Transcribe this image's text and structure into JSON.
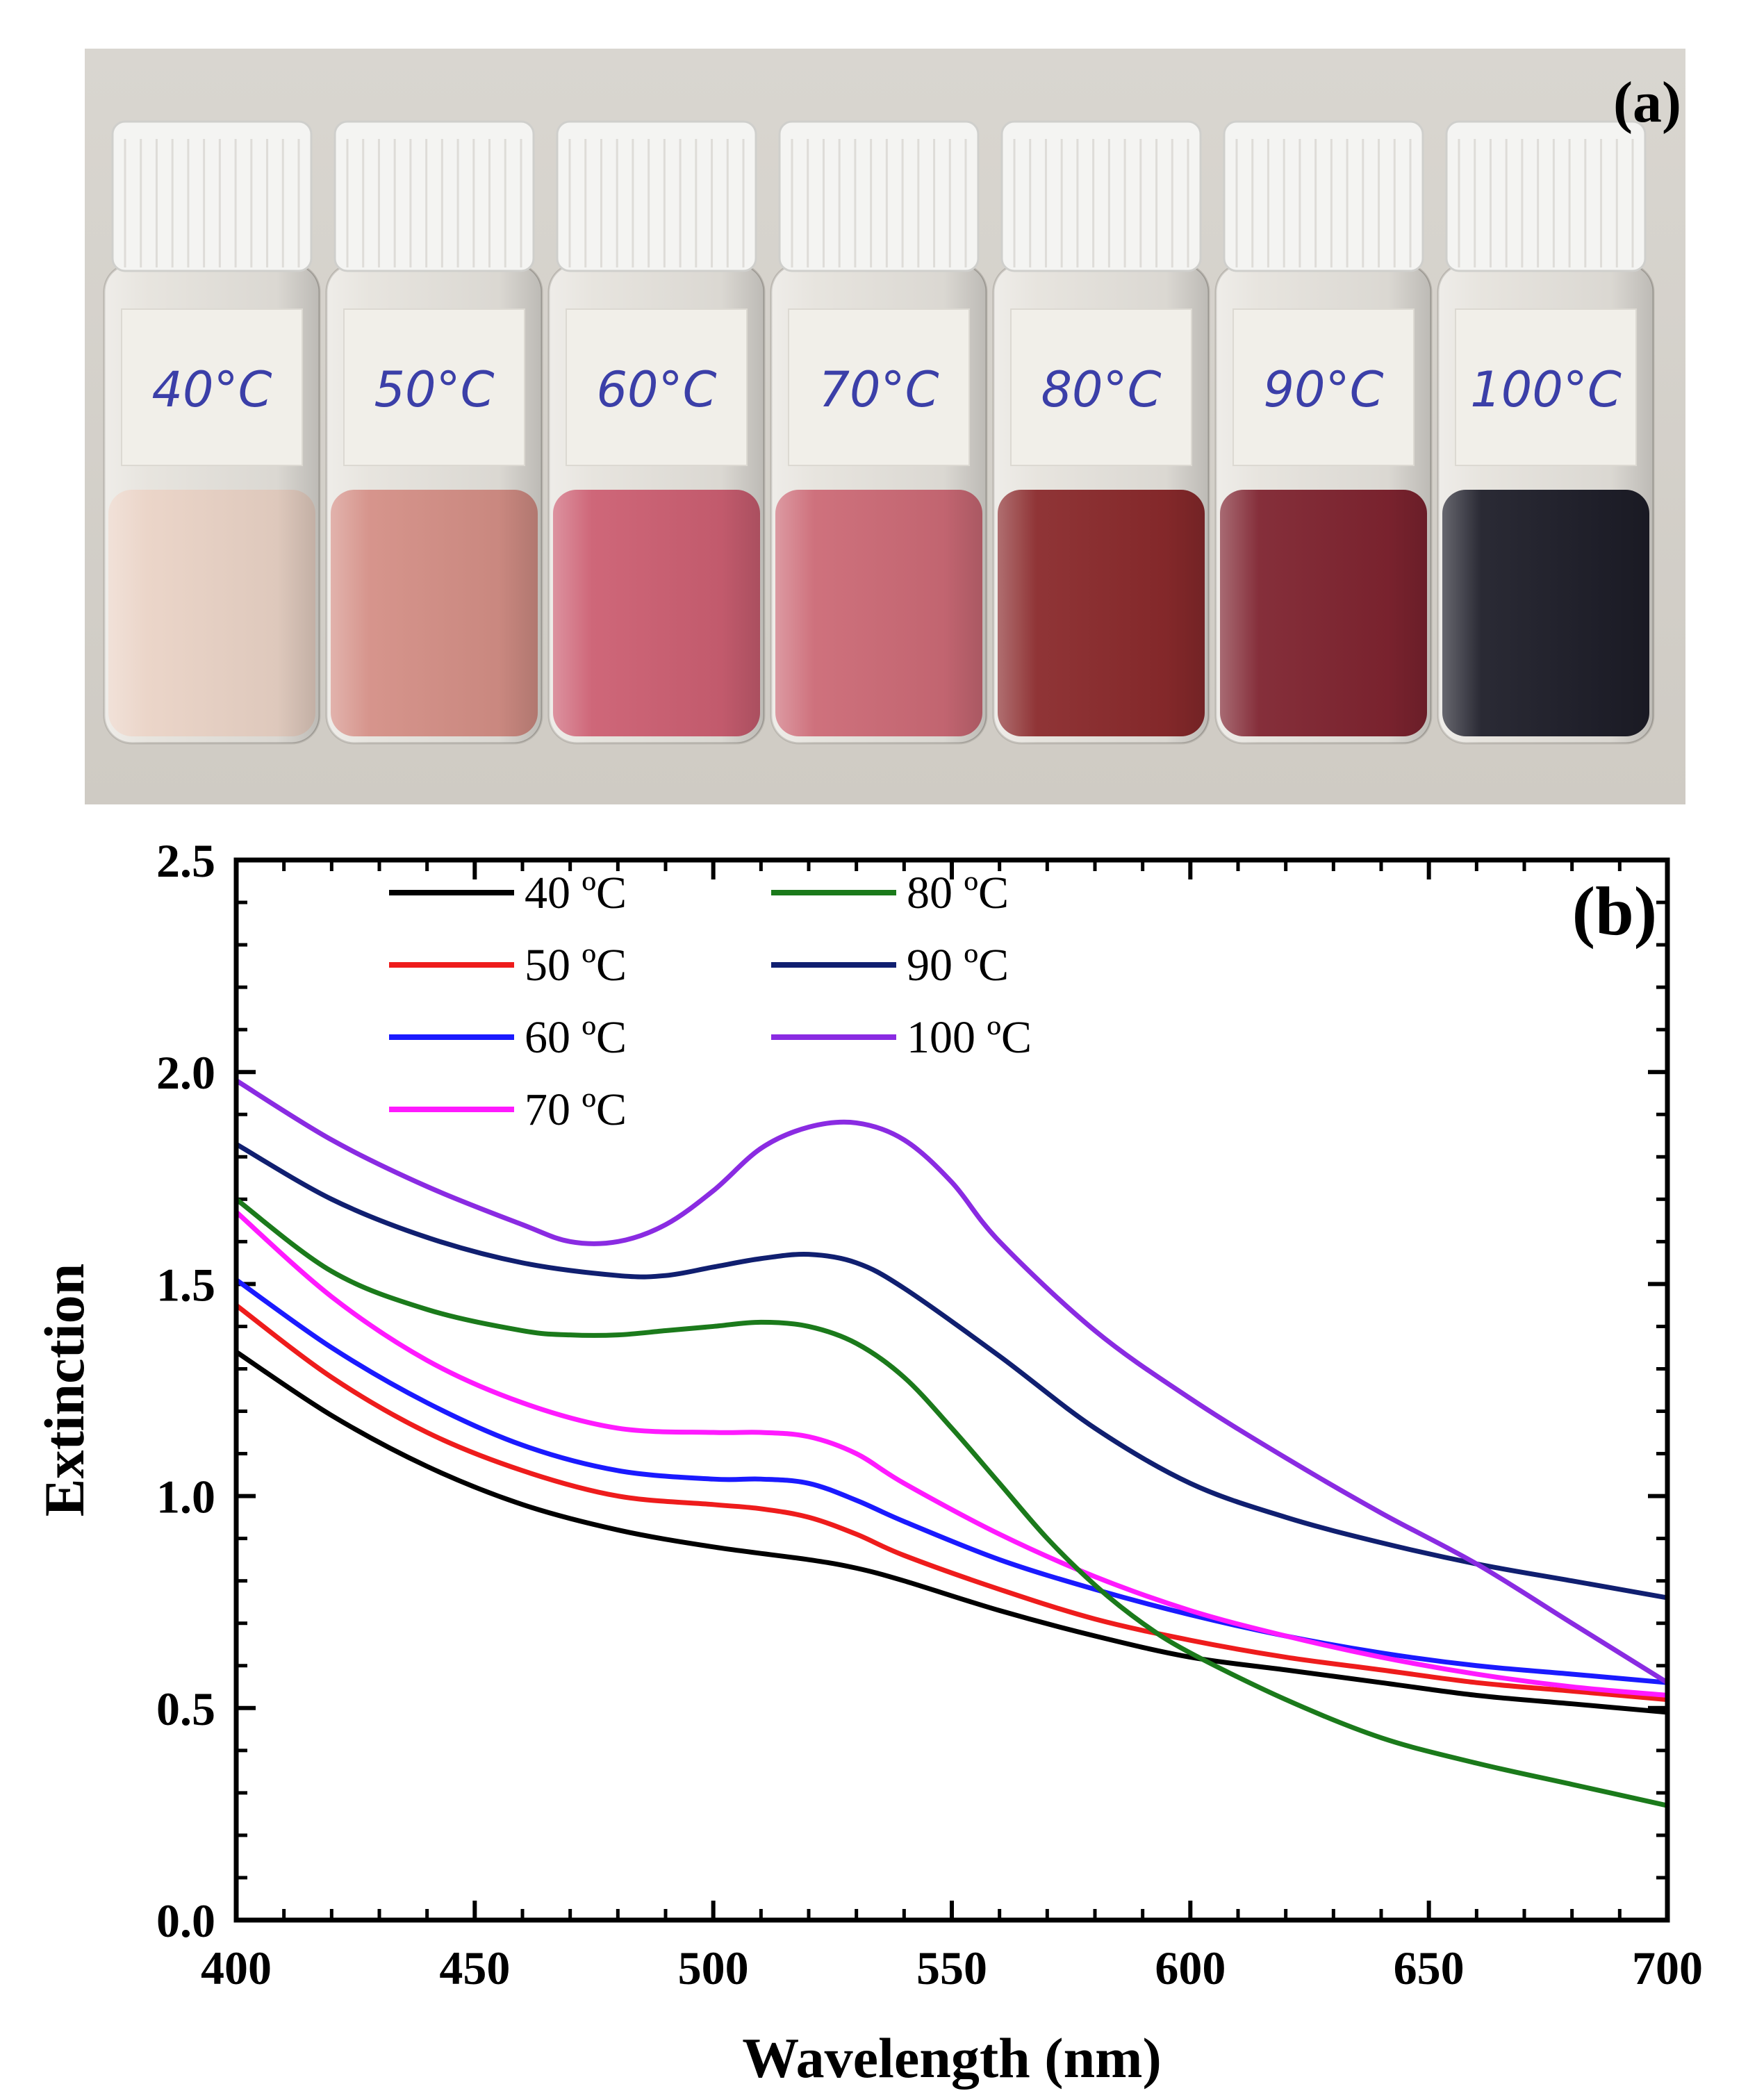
{
  "photo": {
    "panel_label": "(a)",
    "background_colors": [
      "#d9d6d0",
      "#cfcbc4"
    ],
    "cap_color": "#f4f4f2",
    "label_ink": "#3b3fa8",
    "vials": [
      {
        "label": "40°C",
        "liquid": "#ead3c6"
      },
      {
        "label": "50°C",
        "liquid": "#d48f86"
      },
      {
        "label": "60°C",
        "liquid": "#cc5f72"
      },
      {
        "label": "70°C",
        "liquid": "#cc6a76"
      },
      {
        "label": "80°C",
        "liquid": "#8a2a2c"
      },
      {
        "label": "90°C",
        "liquid": "#7f2430"
      },
      {
        "label": "100°C",
        "liquid": "#1f1f2a"
      }
    ]
  },
  "chart_data": {
    "type": "line",
    "panel_label": "(b)",
    "xlabel": "Wavelength (nm)",
    "ylabel": "Extinction",
    "xlim": [
      400,
      700
    ],
    "ylim": [
      0.0,
      2.5
    ],
    "x_ticks": [
      400,
      450,
      500,
      550,
      600,
      650,
      700
    ],
    "x_tick_labels": [
      "400",
      "450",
      "500",
      "550",
      "600",
      "650",
      "700"
    ],
    "y_ticks": [
      0.0,
      0.5,
      1.0,
      1.5,
      2.0,
      2.5
    ],
    "y_tick_labels": [
      "0.0",
      "0.5",
      "1.0",
      "1.5",
      "2.0",
      "2.5"
    ],
    "legend_placement": "top-left",
    "series": [
      {
        "name": "40 ºC",
        "color": "#000000",
        "x": [
          400,
          420,
          440,
          460,
          480,
          500,
          520,
          530,
          540,
          560,
          580,
          600,
          620,
          640,
          660,
          680,
          700
        ],
        "y": [
          1.34,
          1.19,
          1.07,
          0.98,
          0.92,
          0.88,
          0.85,
          0.83,
          0.8,
          0.73,
          0.67,
          0.62,
          0.59,
          0.56,
          0.53,
          0.51,
          0.49
        ]
      },
      {
        "name": "50 ºC",
        "color": "#ee1c1c",
        "x": [
          400,
          420,
          440,
          460,
          480,
          500,
          510,
          520,
          530,
          540,
          560,
          580,
          600,
          620,
          640,
          660,
          680,
          700
        ],
        "y": [
          1.45,
          1.28,
          1.15,
          1.06,
          1.0,
          0.98,
          0.97,
          0.95,
          0.91,
          0.86,
          0.78,
          0.71,
          0.66,
          0.62,
          0.59,
          0.56,
          0.54,
          0.52
        ]
      },
      {
        "name": "60 ºC",
        "color": "#1a1aff",
        "x": [
          400,
          420,
          440,
          460,
          480,
          500,
          510,
          520,
          530,
          540,
          560,
          580,
          600,
          620,
          640,
          660,
          680,
          700
        ],
        "y": [
          1.51,
          1.35,
          1.22,
          1.12,
          1.06,
          1.04,
          1.04,
          1.03,
          0.99,
          0.94,
          0.85,
          0.78,
          0.72,
          0.67,
          0.63,
          0.6,
          0.58,
          0.56
        ]
      },
      {
        "name": "70 ºC",
        "color": "#ff1aff",
        "x": [
          400,
          420,
          440,
          460,
          480,
          500,
          510,
          520,
          530,
          540,
          560,
          580,
          600,
          620,
          640,
          660,
          680,
          700
        ],
        "y": [
          1.67,
          1.47,
          1.32,
          1.22,
          1.16,
          1.15,
          1.15,
          1.14,
          1.1,
          1.03,
          0.91,
          0.81,
          0.73,
          0.67,
          0.62,
          0.58,
          0.55,
          0.53
        ]
      },
      {
        "name": "80 ºC",
        "color": "#1b7a1b",
        "x": [
          400,
          420,
          440,
          460,
          470,
          480,
          490,
          500,
          510,
          520,
          530,
          540,
          550,
          560,
          570,
          580,
          590,
          600,
          620,
          640,
          660,
          680,
          700
        ],
        "y": [
          1.7,
          1.53,
          1.44,
          1.39,
          1.38,
          1.38,
          1.39,
          1.4,
          1.41,
          1.4,
          1.36,
          1.28,
          1.16,
          1.03,
          0.9,
          0.79,
          0.7,
          0.63,
          0.52,
          0.43,
          0.37,
          0.32,
          0.27
        ]
      },
      {
        "name": "90 ºC",
        "color": "#101f70",
        "x": [
          400,
          420,
          440,
          460,
          480,
          490,
          500,
          510,
          520,
          530,
          540,
          560,
          580,
          600,
          620,
          640,
          660,
          680,
          700
        ],
        "y": [
          1.83,
          1.7,
          1.61,
          1.55,
          1.52,
          1.52,
          1.54,
          1.56,
          1.57,
          1.55,
          1.49,
          1.33,
          1.16,
          1.03,
          0.95,
          0.89,
          0.84,
          0.8,
          0.76
        ]
      },
      {
        "name": "100 ºC",
        "color": "#8a2be2",
        "x": [
          400,
          420,
          440,
          460,
          470,
          480,
          490,
          500,
          510,
          520,
          530,
          540,
          550,
          560,
          580,
          600,
          620,
          640,
          660,
          680,
          700
        ],
        "y": [
          1.98,
          1.84,
          1.73,
          1.64,
          1.6,
          1.6,
          1.64,
          1.72,
          1.82,
          1.87,
          1.88,
          1.84,
          1.74,
          1.6,
          1.39,
          1.23,
          1.09,
          0.96,
          0.84,
          0.7,
          0.56
        ]
      }
    ]
  }
}
